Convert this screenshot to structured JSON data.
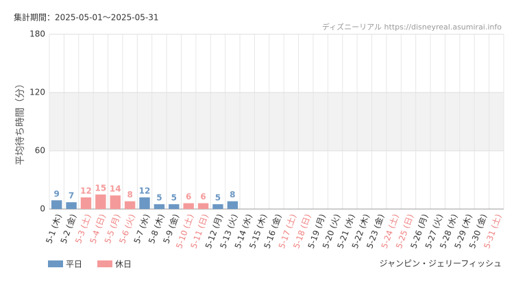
{
  "chart_data": {
    "type": "bar",
    "title": "集計期間：2025-05-01〜2025-05-31",
    "source": "ディズニーリアル https://disneyreal.asumirai.info",
    "y_label": "平均待ち時間（分）",
    "footer": "ジャンピン・ジェリーフィッシュ",
    "categories": [
      "5-1 (木)",
      "5-2 (金)",
      "5-3 (土)",
      "5-4 (日)",
      "5-5 (月)",
      "5-6 (火)",
      "5-7 (水)",
      "5-8 (木)",
      "5-9 (金)",
      "5-10 (土)",
      "5-11 (日)",
      "5-12 (月)",
      "5-13 (火)",
      "5-14 (水)",
      "5-15 (木)",
      "5-16 (金)",
      "5-17 (土)",
      "5-18 (日)",
      "5-19 (月)",
      "5-20 (火)",
      "5-21 (水)",
      "5-22 (木)",
      "5-23 (金)",
      "5-24 (土)",
      "5-25 (日)",
      "5-26 (月)",
      "5-27 (火)",
      "5-28 (水)",
      "5-29 (木)",
      "5-30 (金)",
      "5-31 (土)"
    ],
    "category_colors": [
      "#333",
      "#333",
      "#f08080",
      "#f08080",
      "#f08080",
      "#f08080",
      "#333",
      "#333",
      "#333",
      "#f08080",
      "#f08080",
      "#333",
      "#333",
      "#333",
      "#333",
      "#333",
      "#f08080",
      "#f08080",
      "#333",
      "#333",
      "#333",
      "#333",
      "#333",
      "#f08080",
      "#f08080",
      "#333",
      "#333",
      "#333",
      "#333",
      "#333",
      "#f08080"
    ],
    "series": [
      {
        "name": "平日",
        "color": "#6b97c4",
        "values": [
          9,
          7,
          null,
          null,
          null,
          null,
          12,
          5,
          5,
          null,
          null,
          5,
          8,
          null,
          null,
          null,
          null,
          null,
          null,
          null,
          null,
          null,
          null,
          null,
          null,
          null,
          null,
          null,
          null,
          null,
          null
        ]
      },
      {
        "name": "休日",
        "color": "#f59a9a",
        "values": [
          null,
          null,
          12,
          15,
          14,
          8,
          null,
          null,
          null,
          6,
          6,
          null,
          null,
          null,
          null,
          null,
          null,
          null,
          null,
          null,
          null,
          null,
          null,
          null,
          null,
          null,
          null,
          null,
          null,
          null,
          null
        ]
      }
    ],
    "ylim": [
      0,
      180
    ],
    "yticks": [
      0,
      60,
      120,
      180
    ],
    "shaded_range": [
      60,
      120
    ],
    "grid": true
  }
}
